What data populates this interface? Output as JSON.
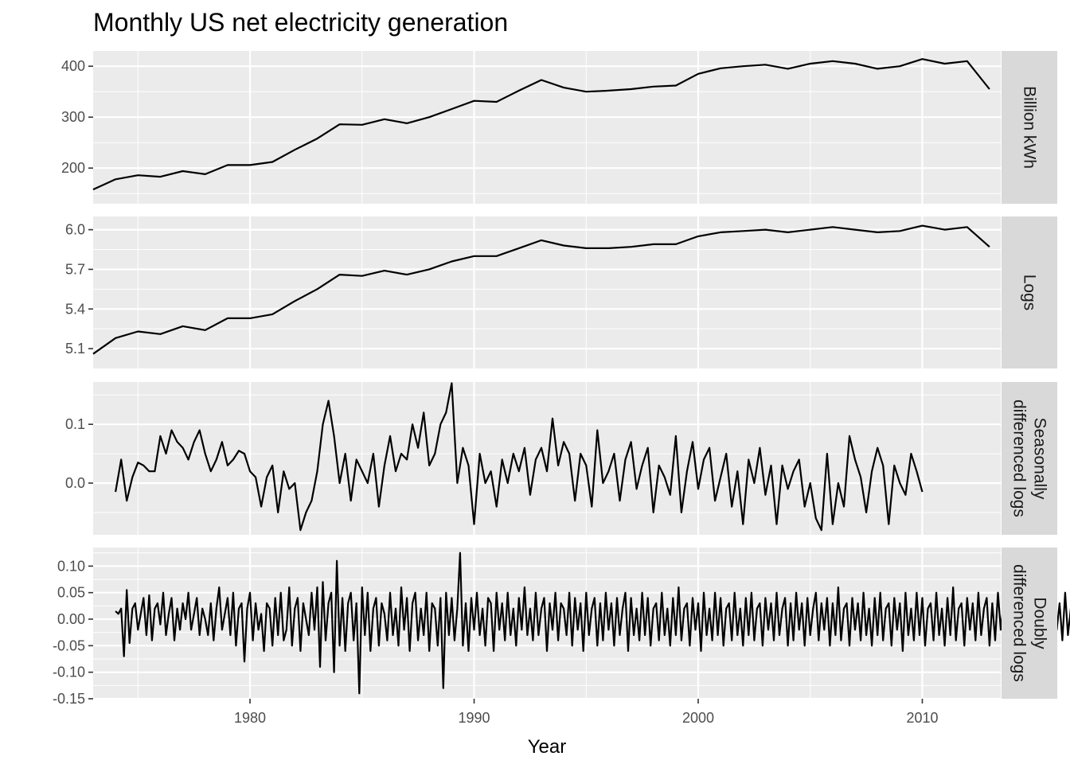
{
  "chart_data": {
    "type": "line",
    "title": "Monthly US net electricity generation",
    "xlabel": "Year",
    "xlim": [
      1973,
      2013.5
    ],
    "x_ticks": [
      1980,
      1990,
      2000,
      2010
    ],
    "x_tick_labels": [
      "1980",
      "1990",
      "2000",
      "2010"
    ],
    "grid": true,
    "facets": [
      {
        "strip_lines": [
          "Billion kWh"
        ],
        "ylim": [
          130,
          430
        ],
        "y_ticks": [
          200,
          300,
          400
        ],
        "y_tick_labels": [
          "200",
          "300",
          "400"
        ],
        "series": {
          "x_start": 1973.0,
          "x_step": 1.0,
          "values": [
            158,
            178,
            186,
            183,
            194,
            188,
            206,
            206,
            212,
            236,
            258,
            286,
            285,
            296,
            288,
            300,
            316,
            332,
            330,
            352,
            373,
            358,
            350,
            352,
            355,
            360,
            362,
            385,
            396,
            400,
            403,
            395,
            405,
            410,
            405,
            395,
            400,
            414,
            405,
            410,
            355
          ]
        }
      },
      {
        "strip_lines": [
          "Logs"
        ],
        "ylim": [
          4.95,
          6.1
        ],
        "y_ticks": [
          5.1,
          5.4,
          5.7,
          6.0
        ],
        "y_tick_labels": [
          "5.1",
          "5.4",
          "5.7",
          "6.0"
        ],
        "series": {
          "x_start": 1973.0,
          "x_step": 1.0,
          "values": [
            5.06,
            5.18,
            5.23,
            5.21,
            5.27,
            5.24,
            5.33,
            5.33,
            5.36,
            5.46,
            5.55,
            5.66,
            5.65,
            5.69,
            5.66,
            5.7,
            5.76,
            5.8,
            5.8,
            5.86,
            5.92,
            5.88,
            5.86,
            5.86,
            5.87,
            5.89,
            5.89,
            5.95,
            5.98,
            5.99,
            6.0,
            5.98,
            6.0,
            6.02,
            6.0,
            5.98,
            5.99,
            6.03,
            6.0,
            6.02,
            5.87
          ]
        }
      },
      {
        "strip_lines": [
          "Seasonally",
          "differenced logs"
        ],
        "ylim": [
          -0.088,
          0.172
        ],
        "y_ticks": [
          0.0,
          0.1
        ],
        "y_tick_labels": [
          "0.0",
          "0.1"
        ],
        "series": {
          "x_start": 1974.0,
          "x_step": 0.25,
          "values": [
            -0.015,
            0.04,
            -0.03,
            0.01,
            0.035,
            0.03,
            0.02,
            0.02,
            0.08,
            0.05,
            0.09,
            0.07,
            0.06,
            0.04,
            0.07,
            0.09,
            0.05,
            0.02,
            0.04,
            0.07,
            0.03,
            0.04,
            0.055,
            0.05,
            0.02,
            0.01,
            -0.04,
            0.01,
            0.03,
            -0.05,
            0.02,
            -0.01,
            0.0,
            -0.08,
            -0.05,
            -0.03,
            0.02,
            0.1,
            0.14,
            0.08,
            0.0,
            0.05,
            -0.03,
            0.04,
            0.02,
            0.0,
            0.05,
            -0.04,
            0.03,
            0.08,
            0.02,
            0.05,
            0.04,
            0.1,
            0.06,
            0.12,
            0.03,
            0.05,
            0.1,
            0.12,
            0.17,
            0.0,
            0.06,
            0.03,
            -0.07,
            0.05,
            0.0,
            0.02,
            -0.04,
            0.04,
            0.0,
            0.05,
            0.02,
            0.06,
            -0.02,
            0.04,
            0.06,
            0.02,
            0.11,
            0.03,
            0.07,
            0.05,
            -0.03,
            0.05,
            0.03,
            -0.04,
            0.09,
            0.0,
            0.02,
            0.05,
            -0.03,
            0.04,
            0.07,
            -0.01,
            0.03,
            0.06,
            -0.05,
            0.03,
            0.01,
            -0.02,
            0.08,
            -0.05,
            0.02,
            0.07,
            -0.01,
            0.04,
            0.06,
            -0.03,
            0.01,
            0.05,
            -0.04,
            0.02,
            -0.07,
            0.04,
            0.0,
            0.06,
            -0.02,
            0.03,
            -0.07,
            0.03,
            -0.01,
            0.02,
            0.04,
            -0.04,
            0.0,
            -0.06,
            -0.08,
            0.05,
            -0.07,
            0.0,
            -0.04,
            0.08,
            0.04,
            0.01,
            -0.05,
            0.02,
            0.06,
            0.03,
            -0.07,
            0.03,
            0.0,
            -0.02,
            0.05,
            0.02,
            -0.015
          ]
        }
      },
      {
        "strip_lines": [
          "Doubly",
          "differenced logs"
        ],
        "ylim": [
          -0.15,
          0.135
        ],
        "y_ticks": [
          -0.15,
          -0.1,
          -0.05,
          0.0,
          0.05,
          0.1
        ],
        "y_tick_labels": [
          "-0.15",
          "-0.10",
          "-0.05",
          "0.00",
          "0.05",
          "0.10"
        ],
        "series": {
          "x_start": 1974.0,
          "x_step": 0.125,
          "values": [
            0.015,
            0.01,
            0.02,
            -0.07,
            0.055,
            -0.045,
            0.02,
            0.03,
            -0.02,
            0.01,
            0.04,
            -0.03,
            0.045,
            -0.04,
            0.02,
            0.03,
            -0.01,
            0.05,
            -0.03,
            0.01,
            0.04,
            -0.04,
            0.02,
            -0.02,
            0.03,
            0.0,
            0.05,
            -0.02,
            0.01,
            0.04,
            -0.03,
            0.02,
            0.0,
            -0.03,
            0.03,
            -0.04,
            0.02,
            0.06,
            -0.02,
            0.01,
            0.04,
            -0.03,
            0.05,
            -0.05,
            0.02,
            0.03,
            -0.08,
            0.02,
            0.05,
            -0.04,
            0.03,
            -0.02,
            0.01,
            -0.06,
            0.03,
            0.02,
            -0.05,
            0.04,
            -0.03,
            0.05,
            -0.04,
            -0.02,
            0.06,
            -0.05,
            0.02,
            0.04,
            -0.06,
            0.03,
            0.0,
            -0.03,
            0.05,
            -0.02,
            0.06,
            -0.09,
            0.07,
            -0.04,
            0.03,
            0.05,
            -0.1,
            0.11,
            -0.05,
            0.04,
            -0.06,
            0.03,
            0.05,
            -0.04,
            0.03,
            -0.14,
            0.06,
            -0.03,
            0.05,
            -0.06,
            0.02,
            0.04,
            -0.05,
            0.03,
            0.01,
            -0.04,
            0.05,
            -0.03,
            0.02,
            -0.05,
            0.06,
            -0.02,
            0.04,
            -0.06,
            0.03,
            0.05,
            -0.04,
            0.02,
            -0.03,
            0.05,
            -0.06,
            0.03,
            0.02,
            -0.05,
            0.04,
            -0.13,
            0.05,
            -0.03,
            0.04,
            -0.04,
            0.02,
            0.125,
            -0.05,
            0.03,
            -0.06,
            0.04,
            -0.02,
            0.05,
            -0.03,
            0.02,
            -0.05,
            0.04,
            0.03,
            -0.06,
            0.05,
            -0.02,
            0.03,
            -0.04,
            0.05,
            -0.03,
            0.02,
            -0.05,
            0.04,
            -0.02,
            0.06,
            -0.03,
            0.02,
            -0.04,
            0.05,
            -0.03,
            0.02,
            0.04,
            -0.06,
            0.03,
            -0.02,
            0.05,
            -0.04,
            0.03,
            0.02,
            -0.03,
            0.05,
            -0.05,
            0.04,
            -0.02,
            0.03,
            -0.06,
            0.05,
            -0.03,
            0.02,
            0.04,
            -0.05,
            0.03,
            -0.04,
            0.05,
            -0.02,
            0.03,
            -0.05,
            0.04,
            -0.03,
            0.02,
            0.05,
            -0.06,
            0.04,
            -0.03,
            0.02,
            -0.04,
            0.05,
            -0.03,
            0.04,
            -0.05,
            0.02,
            0.03,
            -0.04,
            0.05,
            -0.03,
            0.02,
            -0.05,
            0.04,
            -0.03,
            0.06,
            -0.04,
            0.02,
            0.03,
            -0.05,
            0.04,
            -0.02,
            0.03,
            -0.06,
            0.05,
            -0.03,
            0.02,
            -0.04,
            0.05,
            -0.03,
            0.04,
            -0.05,
            0.02,
            0.03,
            -0.04,
            0.05,
            -0.03,
            0.02,
            -0.05,
            0.04,
            -0.03,
            0.05,
            -0.04,
            0.02,
            0.03,
            -0.05,
            0.04,
            -0.02,
            0.03,
            -0.04,
            0.05,
            -0.03,
            0.02,
            0.04,
            -0.05,
            0.03,
            -0.04,
            0.05,
            -0.02,
            0.03,
            -0.05,
            0.04,
            -0.03,
            0.02,
            0.05,
            -0.04,
            0.03,
            -0.02,
            0.04,
            -0.05,
            0.03,
            -0.03,
            0.06,
            -0.04,
            0.02,
            0.03,
            -0.05,
            0.04,
            -0.02,
            0.03,
            -0.04,
            0.05,
            -0.03,
            0.02,
            -0.05,
            0.04,
            -0.03,
            0.05,
            -0.04,
            0.02,
            0.03,
            -0.05,
            0.04,
            -0.02,
            0.03,
            -0.06,
            0.05,
            -0.03,
            0.02,
            -0.04,
            0.05,
            -0.03,
            0.04,
            -0.05,
            0.02,
            0.03,
            -0.04,
            0.05,
            -0.03,
            0.02,
            -0.05,
            0.04,
            -0.03,
            0.06,
            -0.04,
            0.02,
            0.03,
            -0.05,
            0.04,
            -0.02,
            0.03,
            -0.04,
            0.05,
            -0.03,
            0.02,
            0.04,
            -0.05,
            0.03,
            -0.04,
            0.05,
            -0.02,
            0.03,
            -0.05,
            0.04,
            -0.03,
            0.02,
            0.05,
            -0.04,
            0.03,
            -0.02,
            0.04,
            -0.05,
            0.03,
            -0.03,
            0.05,
            -0.04,
            0.02,
            0.03,
            -0.05,
            0.04,
            -0.02,
            0.03,
            -0.04,
            0.05,
            -0.03,
            0.02,
            -0.05,
            0.04,
            -0.03,
            0.05,
            -0.04,
            0.02,
            0.03,
            -0.05,
            0.04,
            -0.02,
            0.03,
            0.0,
            0.04,
            -0.03,
            0.02,
            0.03
          ]
        }
      }
    ]
  }
}
